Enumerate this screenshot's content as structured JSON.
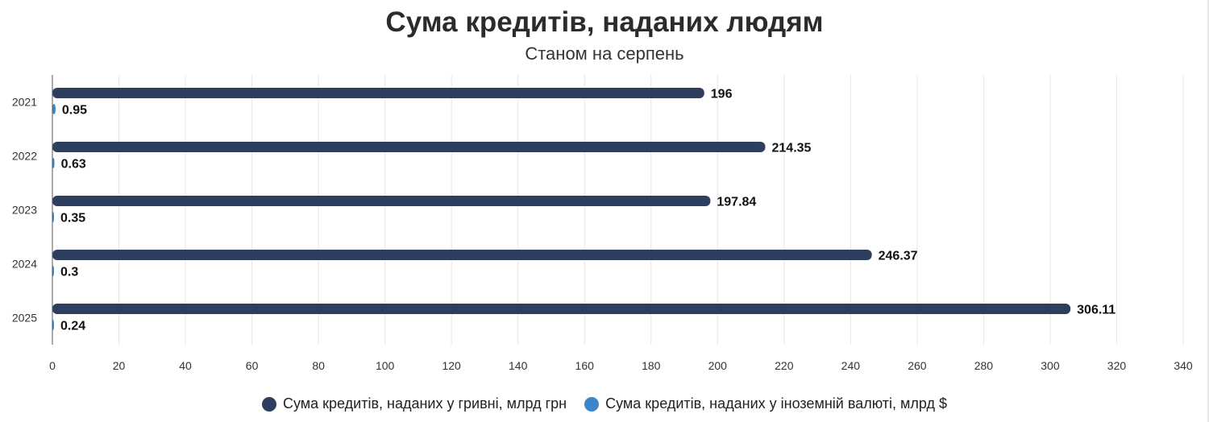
{
  "header": {
    "title": "Сума кредитів, наданих людям",
    "subtitle": "Станом на серпень"
  },
  "legend": [
    {
      "label": "Сума кредитів, наданих у гривні, млрд грн",
      "color": "#2e3e5e"
    },
    {
      "label": "Сума кредитів, наданих у іноземній валюті, млрд $",
      "color": "#3b86c8"
    }
  ],
  "chart_data": {
    "type": "bar",
    "orientation": "horizontal",
    "categories": [
      "2021",
      "2022",
      "2023",
      "2024",
      "2025"
    ],
    "series": [
      {
        "name": "Сума кредитів, наданих у гривні, млрд грн",
        "color": "#2e3e5e",
        "values": [
          196,
          214.35,
          197.84,
          246.37,
          306.11
        ],
        "labels": [
          "196",
          "214.35",
          "197.84",
          "246.37",
          "306.11"
        ]
      },
      {
        "name": "Сума кредитів, наданих у іноземній валюті, млрд $",
        "color": "#3b86c8",
        "values": [
          0.95,
          0.63,
          0.35,
          0.3,
          0.24
        ],
        "labels": [
          "0.95",
          "0.63",
          "0.35",
          "0.3",
          "0.24"
        ]
      }
    ],
    "xlim": [
      0,
      340
    ],
    "xticks": [
      "0",
      "20",
      "40",
      "60",
      "80",
      "100",
      "120",
      "140",
      "160",
      "180",
      "200",
      "220",
      "240",
      "260",
      "280",
      "300",
      "320",
      "340"
    ],
    "grid": true,
    "legend_position": "bottom"
  }
}
